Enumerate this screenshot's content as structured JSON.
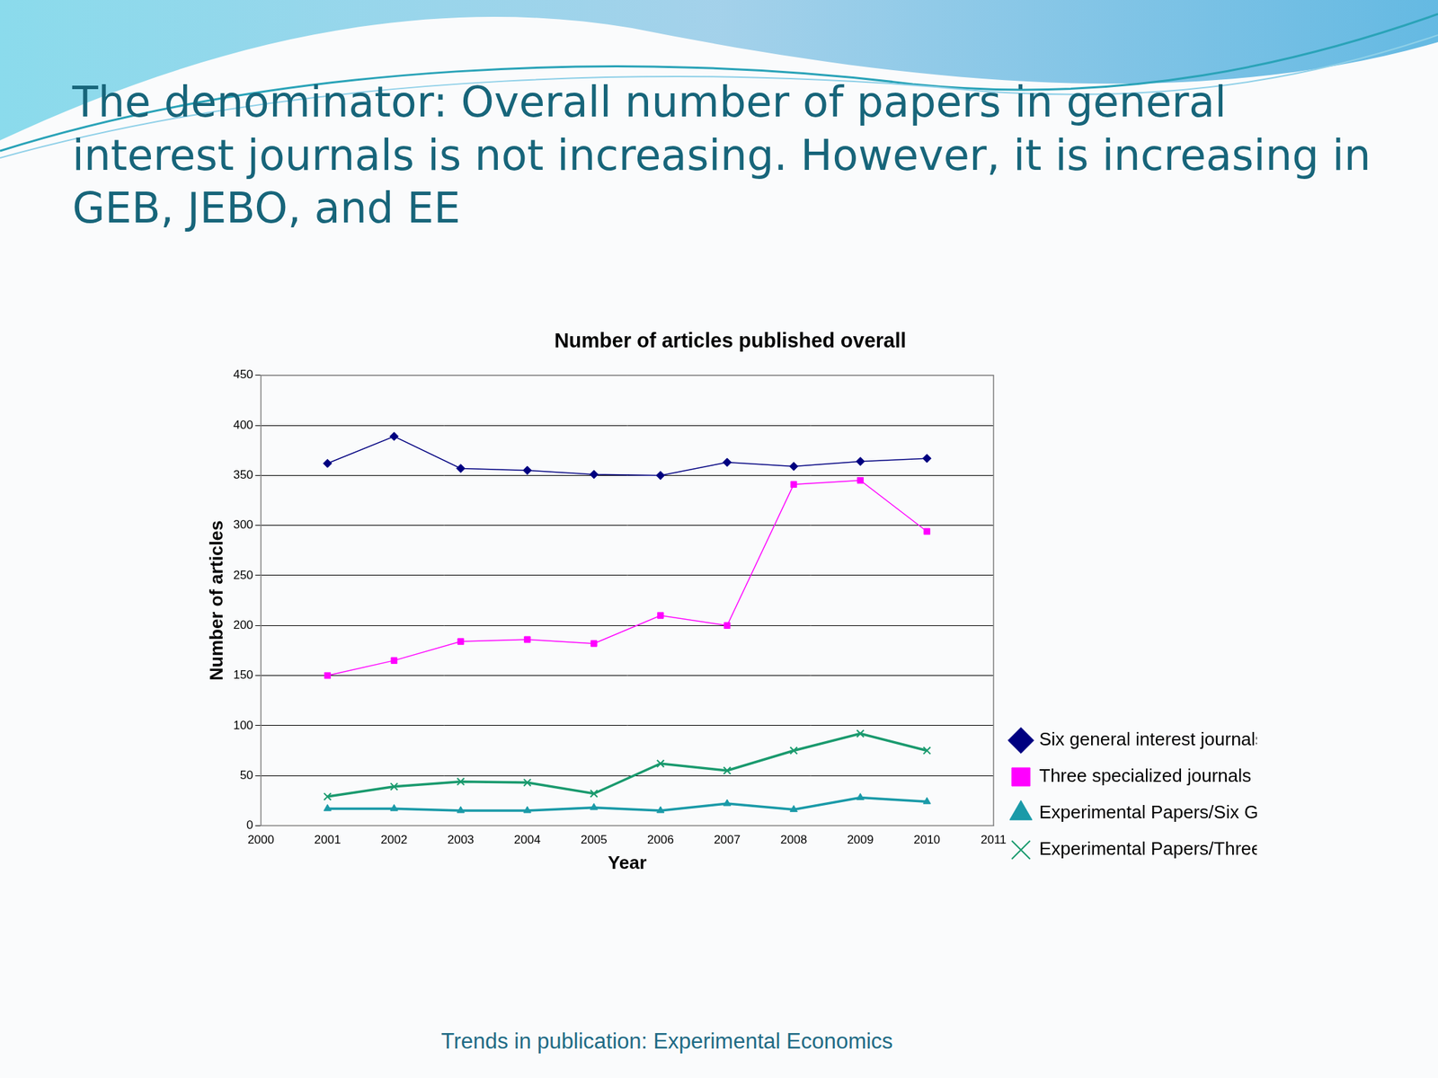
{
  "slide_title": "The denominator: Overall number of papers in general interest journals is not increasing. However, it is increasing in GEB, JEBO, and EE",
  "footer": "Trends in publication: Experimental Economics",
  "chart_data": {
    "type": "line",
    "title": "Number of articles published overall",
    "x_label": "Year",
    "y_label": "Number of articles",
    "x": [
      2001,
      2002,
      2003,
      2004,
      2005,
      2006,
      2007,
      2008,
      2009,
      2010
    ],
    "series": [
      {
        "name": "Six general interest journals",
        "color": "#000080",
        "marker": "diamond",
        "values": [
          362,
          389,
          357,
          355,
          351,
          350,
          363,
          359,
          364,
          367
        ]
      },
      {
        "name": "Three specialized journals",
        "color": "#ff00ff",
        "marker": "square",
        "values": [
          150,
          165,
          184,
          186,
          182,
          210,
          200,
          341,
          345,
          294
        ]
      },
      {
        "name": "Experimental Papers/Six Gen",
        "color": "#1a9aa8",
        "marker": "triangle",
        "values": [
          17,
          17,
          15,
          15,
          18,
          15,
          22,
          16,
          28,
          24
        ]
      },
      {
        "name": "Experimental Papers/Three Spec.",
        "color": "#1a9a6e",
        "marker": "x",
        "values": [
          29,
          39,
          44,
          43,
          32,
          62,
          55,
          75,
          92,
          75
        ]
      }
    ],
    "xlim": [
      2000,
      2011
    ],
    "xticks": [
      2000,
      2001,
      2002,
      2003,
      2004,
      2005,
      2006,
      2007,
      2008,
      2009,
      2010,
      2011
    ],
    "ylim": [
      0,
      450
    ],
    "yticks": [
      0,
      50,
      100,
      150,
      200,
      250,
      300,
      350,
      400,
      450
    ],
    "grid": "y",
    "legend": "right"
  }
}
